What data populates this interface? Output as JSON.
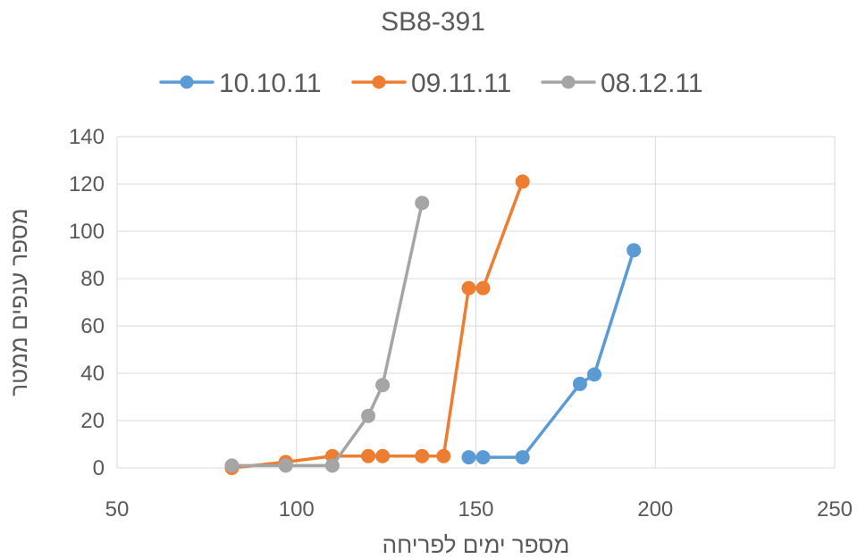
{
  "chart_data": {
    "type": "scatter",
    "title": "SB8-391",
    "xlabel": "מספר ימים לפריחה",
    "ylabel": "מספר ענפים ממטר",
    "xlim": [
      50,
      250
    ],
    "ylim": [
      0,
      140
    ],
    "x_ticks": [
      50,
      100,
      150,
      200,
      250
    ],
    "y_ticks": [
      0,
      20,
      40,
      60,
      80,
      100,
      120,
      140
    ],
    "grid": true,
    "legend_position": "top",
    "series": [
      {
        "name": "10.10.11",
        "color": "#5B9BD5",
        "points": [
          {
            "x": 148,
            "y": 4.5
          },
          {
            "x": 152,
            "y": 4.5
          },
          {
            "x": 163,
            "y": 4.5
          },
          {
            "x": 179,
            "y": 35.5
          },
          {
            "x": 183,
            "y": 39.5
          },
          {
            "x": 194,
            "y": 92
          }
        ]
      },
      {
        "name": "09.11.11",
        "color": "#ED7D31",
        "points": [
          {
            "x": 82,
            "y": 0
          },
          {
            "x": 97,
            "y": 2.5
          },
          {
            "x": 110,
            "y": 5
          },
          {
            "x": 120,
            "y": 5
          },
          {
            "x": 124,
            "y": 5
          },
          {
            "x": 135,
            "y": 5
          },
          {
            "x": 141,
            "y": 5
          },
          {
            "x": 148,
            "y": 76
          },
          {
            "x": 152,
            "y": 76
          },
          {
            "x": 163,
            "y": 121
          }
        ]
      },
      {
        "name": "08.12.11",
        "color": "#A5A5A5",
        "points": [
          {
            "x": 82,
            "y": 1
          },
          {
            "x": 97,
            "y": 1
          },
          {
            "x": 110,
            "y": 1
          },
          {
            "x": 120,
            "y": 22
          },
          {
            "x": 124,
            "y": 35
          },
          {
            "x": 135,
            "y": 112
          }
        ]
      }
    ]
  }
}
